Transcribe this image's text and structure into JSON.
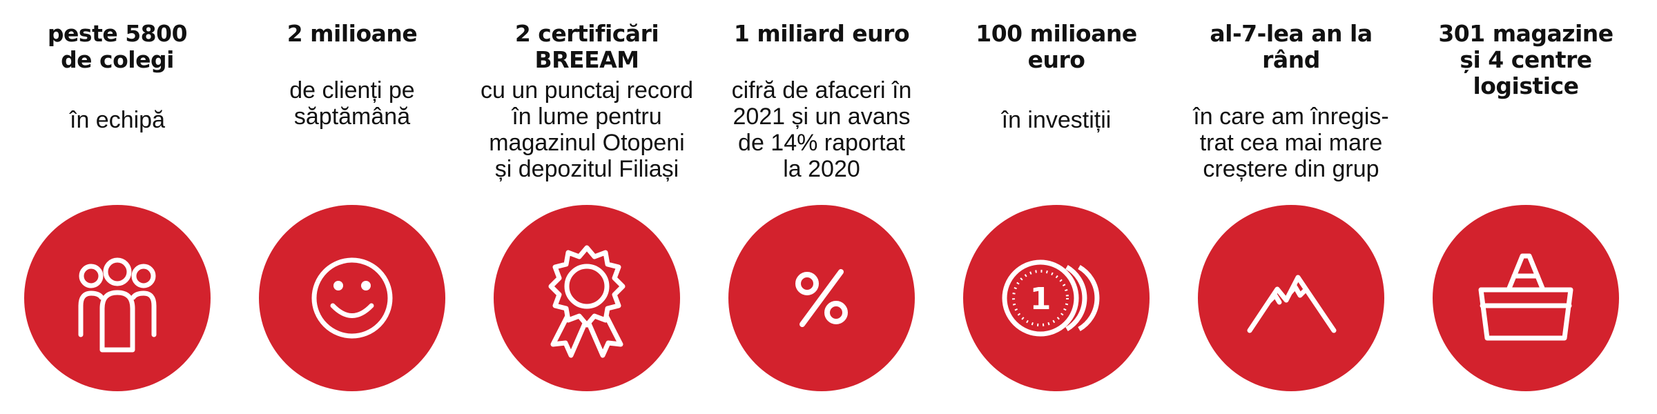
{
  "accent_color": "#d3222d",
  "items": [
    {
      "title_lines": [
        "peste 5800",
        "de colegi"
      ],
      "desc_lines": [
        "în echipă"
      ],
      "icon": "team-icon"
    },
    {
      "title_lines": [
        "2 milioane"
      ],
      "desc_lines": [
        "de clienți pe",
        "săptămână"
      ],
      "icon": "smiley-icon"
    },
    {
      "title_lines": [
        "2 certificări",
        "BREEAM"
      ],
      "desc_lines": [
        "cu un punctaj record",
        "în lume pentru",
        "magazinul Otopeni",
        "și depozitul Filiași"
      ],
      "icon": "award-rosette-icon"
    },
    {
      "title_lines": [
        "1 miliard euro"
      ],
      "desc_lines": [
        "cifră de afaceri în",
        "2021 și un avans",
        "de 14% raportat",
        "la 2020"
      ],
      "icon": "percent-icon"
    },
    {
      "title_lines": [
        "100 milioane",
        "euro"
      ],
      "desc_lines": [
        "în investiții"
      ],
      "icon": "coins-icon",
      "coin_label": "1"
    },
    {
      "title_lines": [
        "al-7-lea an la",
        "rând"
      ],
      "desc_lines": [
        "în care am înregis-",
        "trat cea mai mare",
        "creștere din grup"
      ],
      "icon": "mountain-icon"
    },
    {
      "title_lines": [
        "301 magazine",
        "și 4 centre",
        "logistice"
      ],
      "desc_lines": [],
      "icon": "shopping-basket-icon"
    }
  ]
}
